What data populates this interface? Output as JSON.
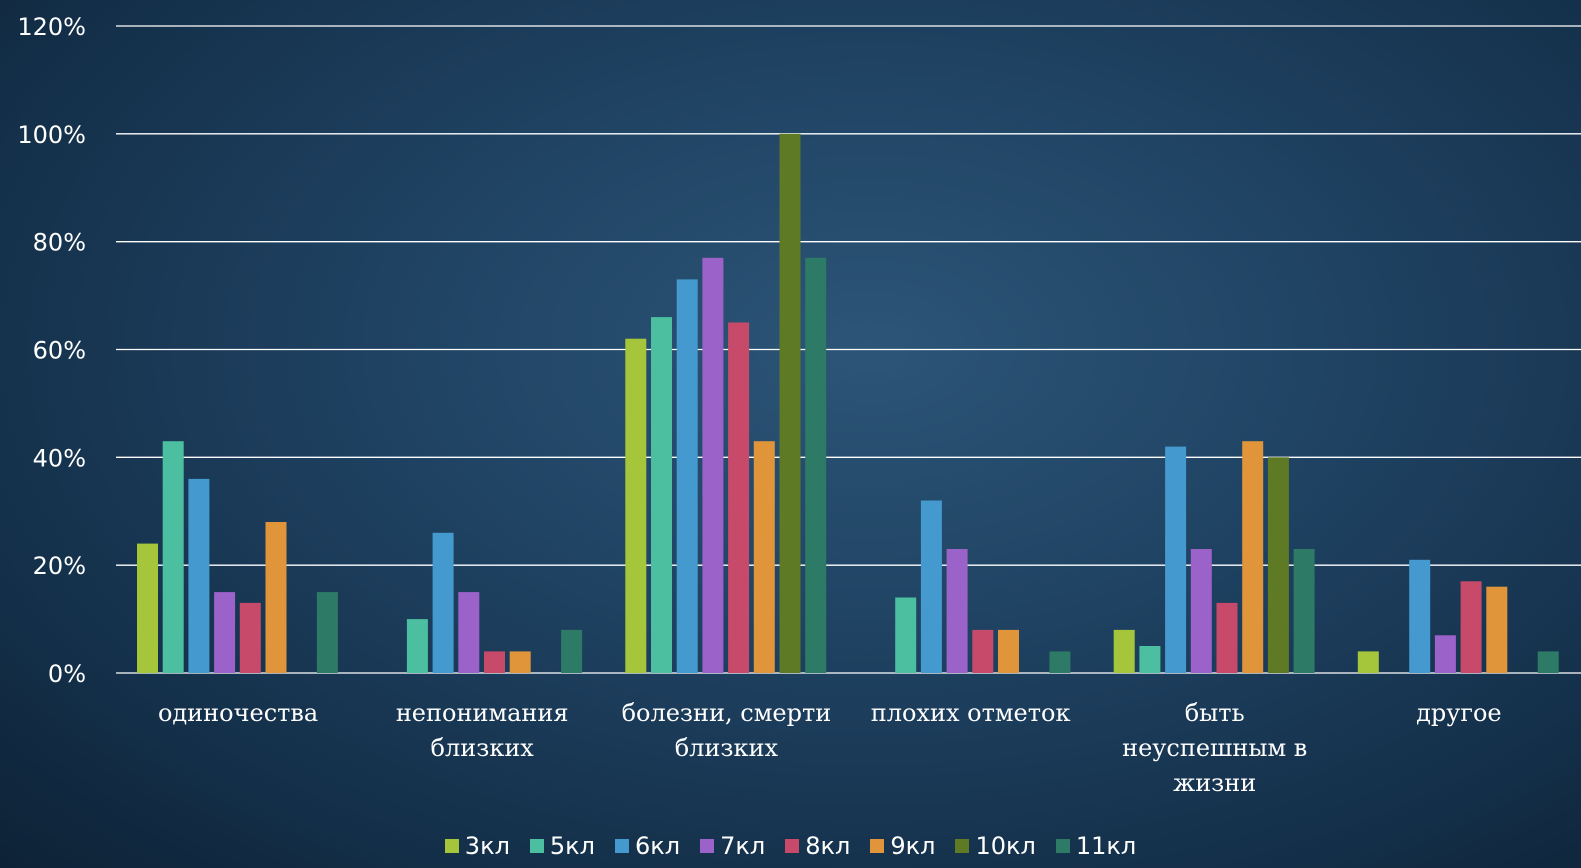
{
  "chart_data": {
    "type": "bar",
    "title": "",
    "xlabel": "",
    "ylabel": "",
    "ylim": [
      0,
      1.2
    ],
    "y_ticks": [
      "0%",
      "20%",
      "40%",
      "60%",
      "80%",
      "100%",
      "120%"
    ],
    "y_tick_values": [
      0,
      0.2,
      0.4,
      0.6,
      0.8,
      1.0,
      1.2
    ],
    "grid": true,
    "legend_position": "bottom",
    "categories": [
      [
        "одиночества"
      ],
      [
        "непонимания",
        "близких"
      ],
      [
        "болезни, смерти",
        "близких"
      ],
      [
        "плохих отметок"
      ],
      [
        "быть",
        "неуспешным в",
        "жизни"
      ],
      [
        "другое"
      ]
    ],
    "series": [
      {
        "name": "3кл",
        "color": "#a5c63b",
        "values": [
          0.24,
          0.0,
          0.62,
          0.0,
          0.08,
          0.04
        ]
      },
      {
        "name": "5кл",
        "color": "#4bbfa0",
        "values": [
          0.43,
          0.1,
          0.66,
          0.14,
          0.05,
          0.0
        ]
      },
      {
        "name": "6кл",
        "color": "#4499cf",
        "values": [
          0.36,
          0.26,
          0.73,
          0.32,
          0.42,
          0.21
        ]
      },
      {
        "name": "7кл",
        "color": "#9b63c9",
        "values": [
          0.15,
          0.15,
          0.77,
          0.23,
          0.23,
          0.07
        ]
      },
      {
        "name": "8кл",
        "color": "#c84a6b",
        "values": [
          0.13,
          0.04,
          0.65,
          0.08,
          0.13,
          0.17
        ]
      },
      {
        "name": "9кл",
        "color": "#e0953a",
        "values": [
          0.28,
          0.04,
          0.43,
          0.08,
          0.43,
          0.16
        ]
      },
      {
        "name": "10кл",
        "color": "#5e7a25",
        "values": [
          0.0,
          0.0,
          1.0,
          0.0,
          0.4,
          0.0
        ]
      },
      {
        "name": "11кл",
        "color": "#2d7a66",
        "values": [
          0.15,
          0.08,
          0.77,
          0.04,
          0.23,
          0.04
        ]
      }
    ]
  }
}
